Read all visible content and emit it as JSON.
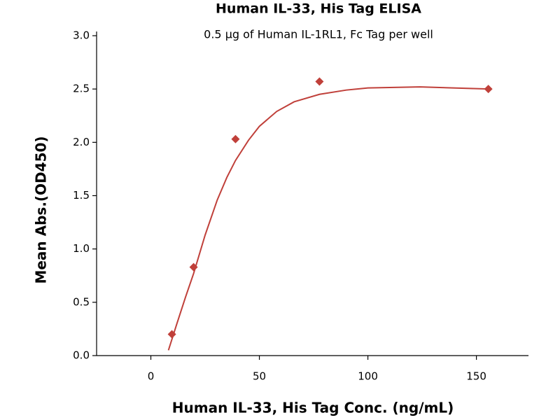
{
  "chart_data": {
    "type": "scatter",
    "title": "Human IL-33, His Tag ELISA",
    "subtitle": "0.5 µg of Human IL-1RL1, Fc Tag per well",
    "x_label": "Human IL-33, His Tag Conc. (ng/mL)",
    "y_label": "Mean Abs.(OD450)",
    "xlim": [
      -25,
      174
    ],
    "ylim": [
      0,
      3.0
    ],
    "xticks": [
      0,
      50,
      100,
      150
    ],
    "yticks": [
      {
        "value": 0,
        "label": "0.0"
      },
      {
        "value": 0.5,
        "label": "0.5"
      },
      {
        "value": 1,
        "label": "1.0"
      },
      {
        "value": 1.5,
        "label": "1.5"
      },
      {
        "value": 2,
        "label": "2.0"
      },
      {
        "value": 2.5,
        "label": "2.5"
      },
      {
        "value": 3,
        "label": "3.0"
      }
    ],
    "series": [
      {
        "mode": "markers",
        "color": "#c0403a",
        "x": [
          9.7,
          19.7,
          39,
          77.7,
          155.5
        ],
        "values": [
          0.2,
          0.83,
          2.03,
          2.57,
          2.5
        ]
      },
      {
        "mode": "line",
        "color": "#c0403a",
        "x": [
          8.1,
          12,
          16,
          19.7,
          25,
          30.6,
          35,
          39,
          45,
          50,
          58,
          66,
          77.7,
          90,
          100,
          124,
          155.5
        ],
        "values": [
          0.05,
          0.3,
          0.55,
          0.77,
          1.13,
          1.46,
          1.67,
          1.83,
          2.02,
          2.15,
          2.29,
          2.38,
          2.45,
          2.49,
          2.51,
          2.52,
          2.5
        ]
      }
    ]
  }
}
